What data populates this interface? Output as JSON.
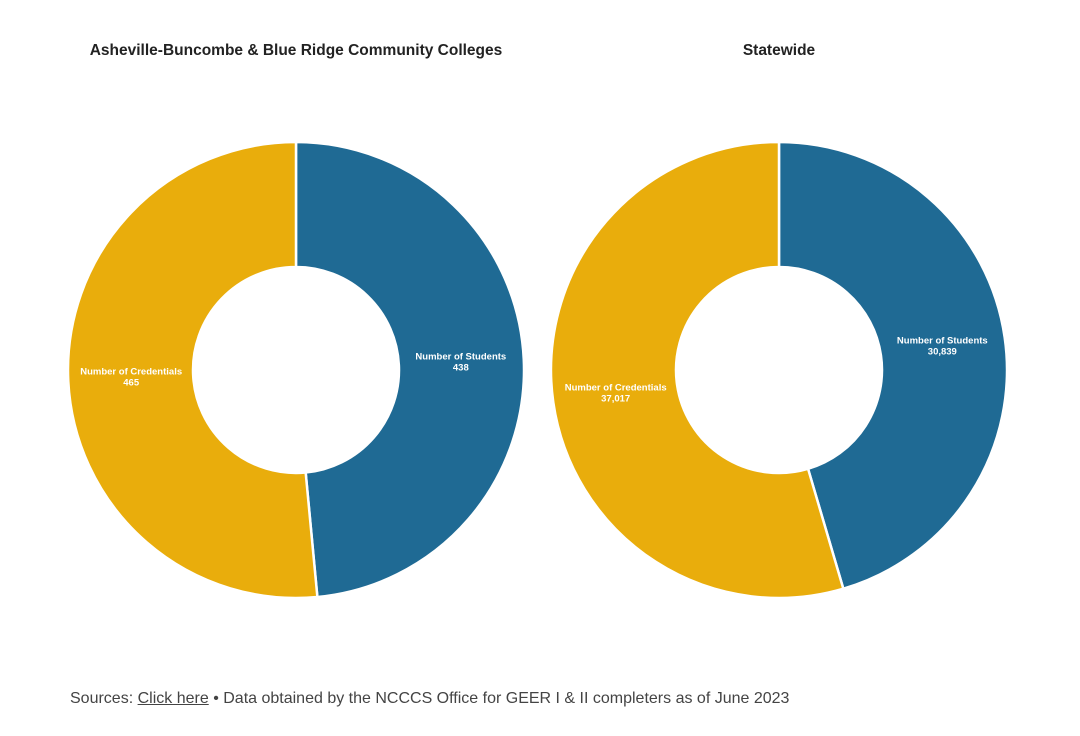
{
  "colors": {
    "students": "#1f6a94",
    "credentials": "#e9ad0c",
    "separator": "#ffffff"
  },
  "footer": {
    "sources_label": "Sources:",
    "link_text": "Click here",
    "note": "• Data obtained by the NCCCS Office for GEER I & II completers as of June 2023"
  },
  "chart_data": [
    {
      "type": "pie",
      "title": "Asheville-Buncombe & Blue Ridge Community Colleges",
      "slices": [
        {
          "label": "Number of Students",
          "value": 438,
          "value_label": "438",
          "color": "#1f6a94"
        },
        {
          "label": "Number of Credentials",
          "value": 465,
          "value_label": "465",
          "color": "#e9ad0c"
        }
      ]
    },
    {
      "type": "pie",
      "title": "Statewide",
      "slices": [
        {
          "label": "Number of Students",
          "value": 30839,
          "value_label": "30,839",
          "color": "#1f6a94"
        },
        {
          "label": "Number of Credentials",
          "value": 37017,
          "value_label": "37,017",
          "color": "#e9ad0c"
        }
      ]
    }
  ]
}
